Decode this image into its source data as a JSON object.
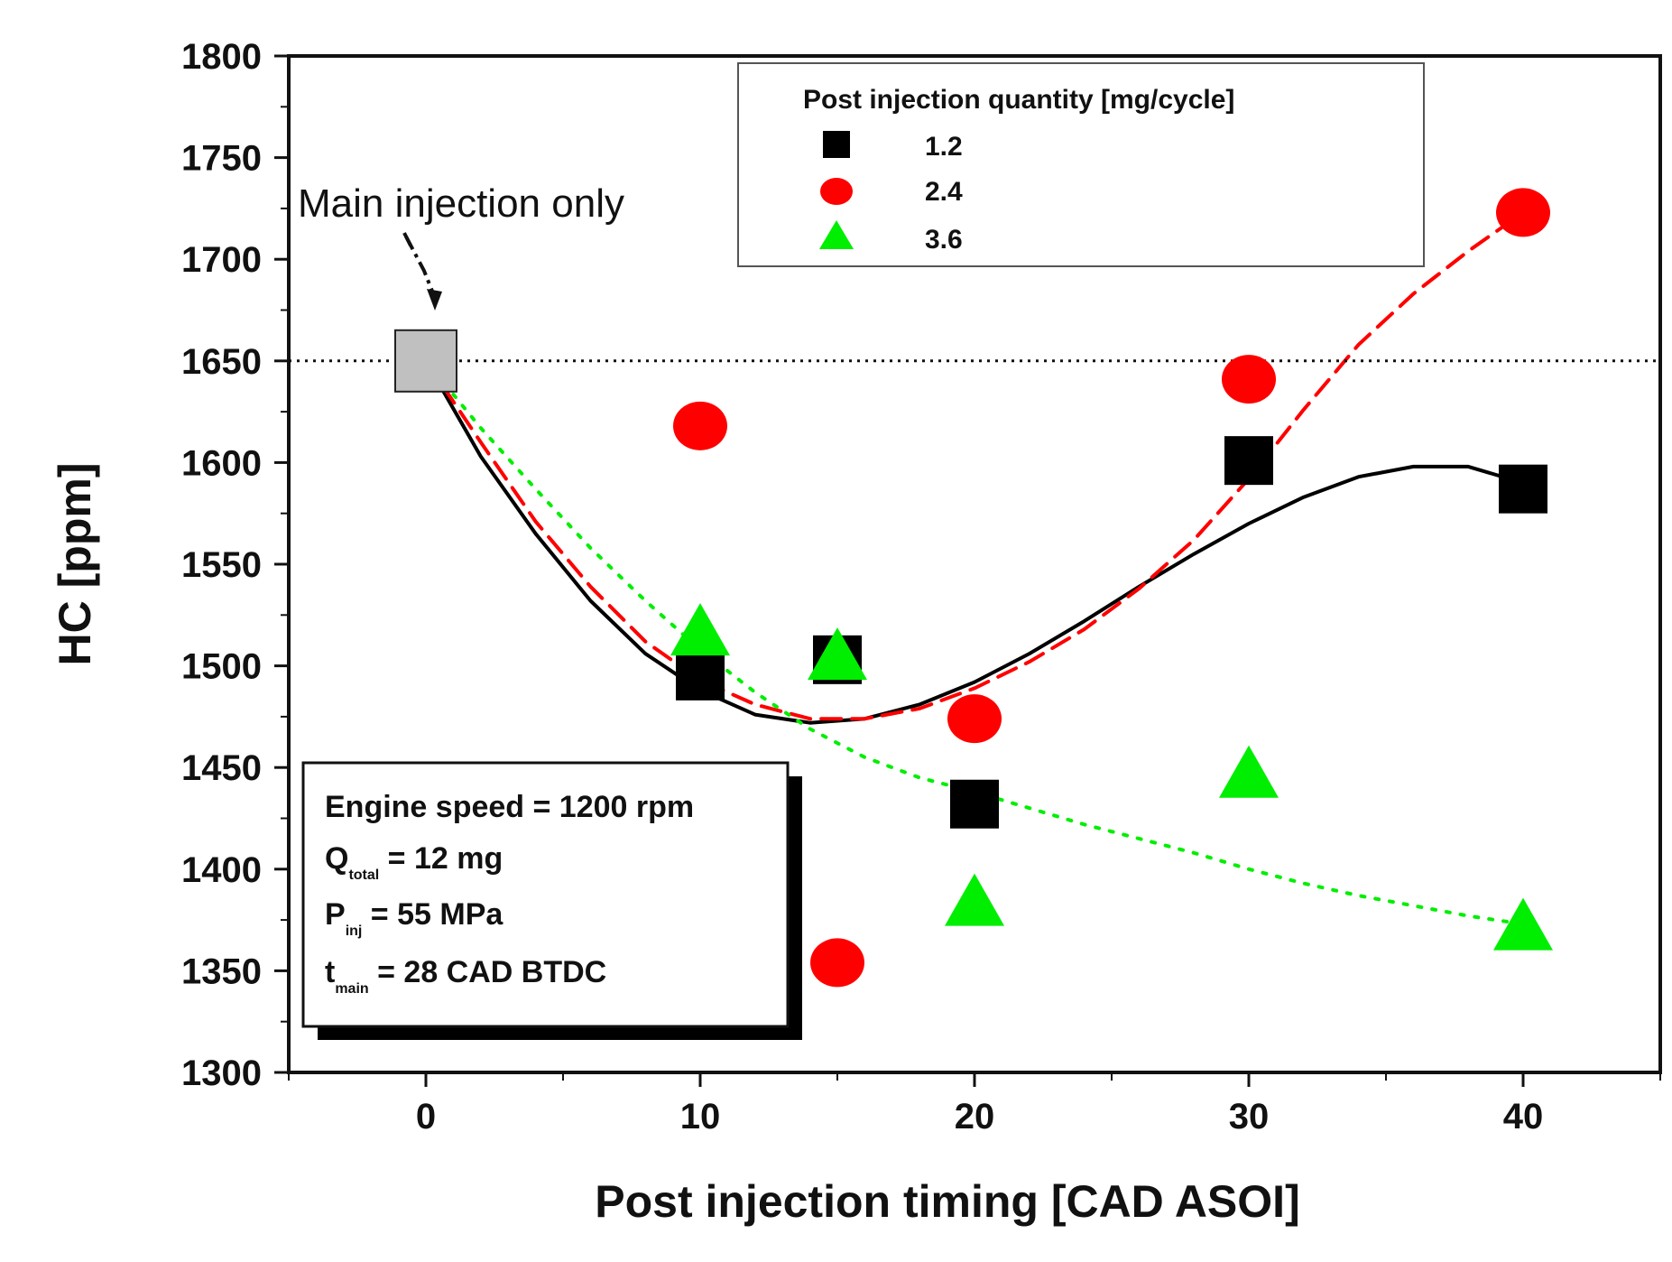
{
  "chart_data": {
    "type": "scatter",
    "xlabel": "Post injection timing [CAD ASOI]",
    "ylabel": "HC [ppm]",
    "xlim": [
      -5,
      45
    ],
    "ylim": [
      1300,
      1800
    ],
    "x_ticks": [
      0,
      10,
      20,
      30,
      40
    ],
    "y_ticks": [
      1300,
      1350,
      1400,
      1450,
      1500,
      1550,
      1600,
      1650,
      1700,
      1750,
      1800
    ],
    "legend": {
      "title": "Post injection quantity [mg/cycle]",
      "placement": "top-right"
    },
    "baseline": {
      "name": "Main injection only",
      "x": 0,
      "value": 1650,
      "color": "#c0c0c0",
      "style": "dotted"
    },
    "series": [
      {
        "name": "1.2",
        "marker": "square",
        "color": "#000000",
        "x": [
          10,
          15,
          20,
          30,
          40
        ],
        "values": [
          1495,
          1503,
          1432,
          1601,
          1587
        ],
        "fit": {
          "style": "solid",
          "x": [
            0,
            2,
            4,
            6,
            8,
            10,
            12,
            14,
            16,
            18,
            20,
            22,
            24,
            26,
            28,
            30,
            32,
            34,
            36,
            38,
            40
          ],
          "y": [
            1650,
            1603,
            1565,
            1532,
            1506,
            1488,
            1476,
            1472,
            1474,
            1481,
            1492,
            1506,
            1522,
            1539,
            1555,
            1570,
            1583,
            1593,
            1598,
            1598,
            1590
          ]
        }
      },
      {
        "name": "2.4",
        "marker": "circle",
        "color": "#ff0000",
        "x": [
          10,
          15,
          20,
          30,
          40
        ],
        "values": [
          1618,
          1354,
          1474,
          1641,
          1723
        ],
        "fit": {
          "style": "dashed",
          "x": [
            0,
            2,
            4,
            6,
            8,
            10,
            12,
            14,
            16,
            18,
            20,
            22,
            24,
            26,
            28,
            30,
            32,
            34,
            36,
            38,
            40
          ],
          "y": [
            1650,
            1610,
            1571,
            1539,
            1512,
            1493,
            1481,
            1474,
            1474,
            1479,
            1489,
            1502,
            1518,
            1538,
            1562,
            1592,
            1626,
            1658,
            1683,
            1704,
            1723
          ]
        }
      },
      {
        "name": "3.6",
        "marker": "triangle",
        "color": "#00ee00",
        "x": [
          10,
          15,
          20,
          30,
          40
        ],
        "values": [
          1518,
          1506,
          1385,
          1448,
          1373
        ],
        "fit": {
          "style": "dotted",
          "x": [
            0,
            2,
            4,
            6,
            8,
            10,
            12,
            14,
            16,
            18,
            20,
            22,
            24,
            26,
            28,
            30,
            32,
            34,
            36,
            38,
            40
          ],
          "y": [
            1650,
            1617,
            1587,
            1558,
            1532,
            1508,
            1487,
            1469,
            1455,
            1445,
            1438,
            1430,
            1422,
            1415,
            1408,
            1400,
            1393,
            1387,
            1382,
            1377,
            1373
          ]
        }
      }
    ],
    "annotations": {
      "arrow_label": "Main injection only",
      "info_lines": [
        {
          "main": "Engine speed = 1200 rpm",
          "sub": ""
        },
        {
          "main": "Q",
          "sub": "total",
          "rest": " = 12 mg"
        },
        {
          "main": "P",
          "sub": "inj",
          "rest": " = 55 MPa"
        },
        {
          "main": "t",
          "sub": "main",
          "rest": " = 28 CAD BTDC"
        }
      ]
    }
  }
}
